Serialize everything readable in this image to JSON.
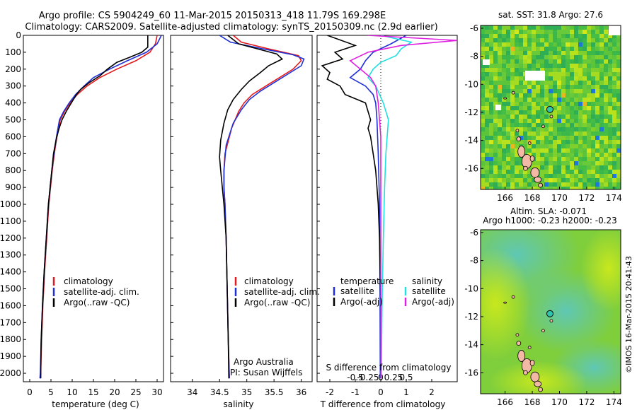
{
  "header": {
    "line1": "Argo profile: CS 5904249_60 11-Mar-2015 20150313_418 11.79S 169.298E",
    "line2": "Climatology: CARS2009. Satellite-adjusted climatology: synTS_20150309.nc (2.9d earlier)"
  },
  "credits": {
    "group": "Argo Australia",
    "pi": "PI: Susan Wijffels",
    "stamp": "©IMOS 16-Mar-2015 20:41:43"
  },
  "legend_labels": {
    "climatology": "climatology",
    "sat_adj": "satellite-adj. clim.",
    "argo_raw": "Argo(..raw -QC)",
    "temperature": "temperature",
    "salinity": "salinity",
    "satellite": "satellite",
    "argo_adj": "Argo(-adj)"
  },
  "colors": {
    "climatology": "#e41a1c",
    "satellite": "#1f2fd6",
    "argo": "#000000",
    "sal_satellite": "#22e0e0",
    "sal_argo": "#e020e0",
    "map_land": "#f2b9a6"
  },
  "maps": {
    "sst": {
      "title": "sat. SST: 31.8 Argo: 27.6"
    },
    "sla": {
      "title1": "Altim. SLA: -0.071",
      "title2": "Argo h1000: -0.23 h2000: -0.23"
    },
    "argo_position": {
      "lat": -11.79,
      "lon": 169.298
    }
  },
  "chart_data": [
    {
      "type": "line",
      "panel": "temperature",
      "xlabel": "temperature (deg C)",
      "ylim": [
        2050,
        0
      ],
      "xlim": [
        -1.5,
        31.5
      ],
      "xticks": [
        0,
        5,
        10,
        15,
        20,
        25,
        30
      ],
      "yticks": [
        0,
        100,
        200,
        300,
        400,
        500,
        600,
        700,
        800,
        900,
        1000,
        1100,
        1200,
        1300,
        1400,
        1500,
        1600,
        1700,
        1800,
        1900,
        2000
      ],
      "series": [
        {
          "name": "climatology",
          "color": "red",
          "points": [
            [
              30.0,
              0
            ],
            [
              29.6,
              50
            ],
            [
              28.3,
              100
            ],
            [
              25.0,
              150
            ],
            [
              20.5,
              200
            ],
            [
              16.5,
              250
            ],
            [
              13.5,
              300
            ],
            [
              11.2,
              350
            ],
            [
              9.5,
              400
            ],
            [
              8.2,
              450
            ],
            [
              7.2,
              500
            ],
            [
              6.4,
              600
            ],
            [
              5.8,
              700
            ],
            [
              5.3,
              800
            ],
            [
              4.9,
              900
            ],
            [
              4.5,
              1000
            ],
            [
              4.0,
              1200
            ],
            [
              3.5,
              1400
            ],
            [
              3.1,
              1600
            ],
            [
              2.8,
              1800
            ],
            [
              2.6,
              2000
            ],
            [
              2.5,
              2030
            ]
          ]
        },
        {
          "name": "satellite-adj. clim.",
          "color": "blue",
          "points": [
            [
              31.0,
              0
            ],
            [
              30.0,
              50
            ],
            [
              27.5,
              100
            ],
            [
              23.0,
              150
            ],
            [
              18.8,
              200
            ],
            [
              15.0,
              250
            ],
            [
              12.8,
              300
            ],
            [
              10.8,
              350
            ],
            [
              9.3,
              400
            ],
            [
              8.0,
              450
            ],
            [
              7.0,
              500
            ],
            [
              6.3,
              600
            ],
            [
              5.7,
              700
            ],
            [
              5.2,
              800
            ],
            [
              4.8,
              900
            ],
            [
              4.4,
              1000
            ],
            [
              3.9,
              1200
            ],
            [
              3.4,
              1400
            ],
            [
              3.0,
              1600
            ],
            [
              2.7,
              1800
            ],
            [
              2.5,
              2000
            ],
            [
              2.4,
              2030
            ]
          ]
        },
        {
          "name": "Argo(..raw -QC)",
          "color": "black",
          "points": [
            [
              27.8,
              0
            ],
            [
              27.8,
              70
            ],
            [
              26.4,
              100
            ],
            [
              23.5,
              130
            ],
            [
              20.5,
              160
            ],
            [
              18.3,
              200
            ],
            [
              16.5,
              240
            ],
            [
              14.0,
              280
            ],
            [
              12.0,
              320
            ],
            [
              11.0,
              350
            ],
            [
              9.8,
              400
            ],
            [
              8.6,
              450
            ],
            [
              7.6,
              500
            ],
            [
              6.8,
              560
            ],
            [
              6.2,
              620
            ],
            [
              5.6,
              700
            ],
            [
              5.2,
              800
            ],
            [
              4.8,
              900
            ],
            [
              4.4,
              1000
            ],
            [
              3.9,
              1200
            ],
            [
              3.4,
              1400
            ],
            [
              3.0,
              1600
            ],
            [
              2.7,
              1800
            ],
            [
              2.6,
              1950
            ],
            [
              2.6,
              2030
            ]
          ]
        }
      ]
    },
    {
      "type": "line",
      "panel": "salinity",
      "xlabel": "salinity",
      "ylim": [
        2050,
        0
      ],
      "xlim": [
        33.6,
        36.2
      ],
      "xticks": [
        34,
        34.5,
        35,
        35.5,
        36
      ],
      "series": [
        {
          "name": "climatology",
          "color": "red",
          "points": [
            [
              34.75,
              0
            ],
            [
              34.9,
              40
            ],
            [
              35.4,
              80
            ],
            [
              35.95,
              120
            ],
            [
              36.0,
              150
            ],
            [
              35.85,
              200
            ],
            [
              35.6,
              250
            ],
            [
              35.35,
              300
            ],
            [
              35.1,
              350
            ],
            [
              34.95,
              400
            ],
            [
              34.85,
              450
            ],
            [
              34.72,
              550
            ],
            [
              34.6,
              700
            ],
            [
              34.58,
              800
            ],
            [
              34.58,
              900
            ],
            [
              34.6,
              1000
            ],
            [
              34.62,
              1200
            ],
            [
              34.64,
              1500
            ],
            [
              34.66,
              1800
            ],
            [
              34.68,
              2030
            ]
          ]
        },
        {
          "name": "satellite-adj. clim.",
          "color": "blue",
          "points": [
            [
              34.5,
              0
            ],
            [
              34.7,
              40
            ],
            [
              35.3,
              80
            ],
            [
              35.85,
              115
            ],
            [
              36.05,
              140
            ],
            [
              36.0,
              180
            ],
            [
              35.75,
              230
            ],
            [
              35.5,
              280
            ],
            [
              35.25,
              330
            ],
            [
              35.05,
              380
            ],
            [
              34.9,
              440
            ],
            [
              34.75,
              520
            ],
            [
              34.62,
              650
            ],
            [
              34.58,
              800
            ],
            [
              34.58,
              900
            ],
            [
              34.6,
              1000
            ],
            [
              34.62,
              1200
            ],
            [
              34.64,
              1500
            ],
            [
              34.66,
              1800
            ],
            [
              34.68,
              2030
            ]
          ]
        },
        {
          "name": "Argo(..raw -QC)",
          "color": "black",
          "points": [
            [
              34.65,
              0
            ],
            [
              34.85,
              50
            ],
            [
              35.55,
              110
            ],
            [
              35.65,
              140
            ],
            [
              35.4,
              180
            ],
            [
              35.25,
              220
            ],
            [
              35.05,
              270
            ],
            [
              34.9,
              320
            ],
            [
              34.75,
              380
            ],
            [
              34.65,
              440
            ],
            [
              34.58,
              520
            ],
            [
              34.52,
              620
            ],
            [
              34.5,
              720
            ],
            [
              34.52,
              800
            ],
            [
              34.55,
              900
            ],
            [
              34.58,
              1000
            ],
            [
              34.62,
              1200
            ],
            [
              34.64,
              1500
            ],
            [
              34.66,
              1800
            ],
            [
              34.67,
              2030
            ]
          ]
        }
      ]
    },
    {
      "type": "line",
      "panel": "difference",
      "xlabel": "T difference from climatology",
      "x2label": "S difference from climatology",
      "ylim": [
        2050,
        0
      ],
      "xlim": [
        -2.5,
        3.0
      ],
      "xticks": [
        -2,
        -1,
        0,
        1,
        2
      ],
      "x2ticks": [
        -0.5,
        -0.25,
        0,
        0.25,
        0.5
      ],
      "series": [
        {
          "name": "temperature satellite",
          "color": "blue",
          "points": [
            [
              1.0,
              0
            ],
            [
              0.4,
              50
            ],
            [
              -0.3,
              100
            ],
            [
              -0.6,
              150
            ],
            [
              -0.8,
              200
            ],
            [
              -1.2,
              250
            ],
            [
              -0.6,
              300
            ],
            [
              -0.3,
              350
            ],
            [
              -0.2,
              400
            ],
            [
              -0.15,
              500
            ],
            [
              -0.1,
              700
            ],
            [
              -0.05,
              1000
            ],
            [
              -0.03,
              1500
            ],
            [
              -0.02,
              2030
            ]
          ]
        },
        {
          "name": "temperature Argo(-adj)",
          "color": "black",
          "points": [
            [
              -2.1,
              0
            ],
            [
              -1.0,
              60
            ],
            [
              -1.8,
              100
            ],
            [
              -1.5,
              140
            ],
            [
              -2.3,
              180
            ],
            [
              -2.0,
              220
            ],
            [
              -2.1,
              260
            ],
            [
              -1.6,
              300
            ],
            [
              -1.4,
              350
            ],
            [
              -0.6,
              400
            ],
            [
              -0.5,
              450
            ],
            [
              -0.4,
              500
            ],
            [
              -0.5,
              550
            ],
            [
              -0.4,
              600
            ],
            [
              -0.3,
              700
            ],
            [
              -0.2,
              800
            ],
            [
              -0.1,
              1000
            ],
            [
              -0.05,
              1200
            ],
            [
              0.0,
              1600
            ],
            [
              0.0,
              2030
            ]
          ]
        },
        {
          "name": "salinity satellite",
          "color": "cyan",
          "points": [
            [
              0.0,
              0
            ],
            [
              1.2,
              40
            ],
            [
              0.8,
              80
            ],
            [
              0.6,
              120
            ],
            [
              0.0,
              160
            ],
            [
              -0.3,
              200
            ],
            [
              -0.5,
              250
            ],
            [
              -0.2,
              300
            ],
            [
              0.1,
              400
            ],
            [
              0.3,
              500
            ],
            [
              0.2,
              700
            ],
            [
              0.15,
              900
            ],
            [
              0.1,
              1200
            ],
            [
              0.05,
              1600
            ],
            [
              0.02,
              2030
            ]
          ]
        },
        {
          "name": "salinity Argo(-adj)",
          "color": "magenta",
          "points": [
            [
              -0.5,
              0
            ],
            [
              3.0,
              30
            ],
            [
              0.8,
              60
            ],
            [
              -0.5,
              100
            ],
            [
              -1.2,
              150
            ],
            [
              -0.8,
              200
            ],
            [
              -0.4,
              250
            ],
            [
              -0.2,
              300
            ],
            [
              -0.1,
              400
            ],
            [
              0.0,
              600
            ],
            [
              0.0,
              1000
            ],
            [
              0.0,
              2030
            ]
          ]
        }
      ]
    },
    {
      "type": "heatmap",
      "panel": "sst map",
      "title": "sat. SST: 31.8 Argo: 27.6",
      "xlim": [
        164.2,
        174.5
      ],
      "ylim": [
        -17.5,
        -5.8
      ],
      "xticks": [
        166,
        168,
        170,
        172,
        174
      ],
      "yticks": [
        -6,
        -8,
        -10,
        -12,
        -14,
        -16
      ]
    },
    {
      "type": "heatmap",
      "panel": "sla map",
      "title": "Altim. SLA: -0.071",
      "xlim": [
        164.2,
        174.5
      ],
      "ylim": [
        -17.5,
        -5.8
      ],
      "xticks": [
        166,
        168,
        170,
        172,
        174
      ],
      "yticks": [
        -6,
        -8,
        -10,
        -12,
        -14,
        -16
      ]
    }
  ]
}
